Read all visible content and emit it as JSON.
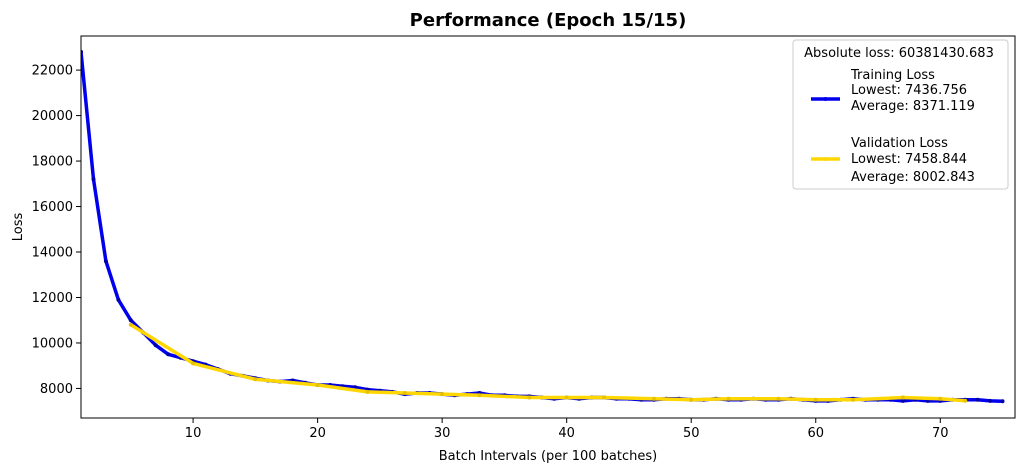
{
  "chart_data": {
    "type": "line",
    "title": "Performance (Epoch 15/15)",
    "xlabel": "Batch Intervals (per 100 batches)",
    "ylabel": "Loss",
    "xlim": [
      1,
      76
    ],
    "ylim": [
      6700,
      23500
    ],
    "xticks": [
      10,
      20,
      30,
      40,
      50,
      60,
      70
    ],
    "yticks": [
      8000,
      10000,
      12000,
      14000,
      16000,
      18000,
      20000,
      22000
    ],
    "grid": false,
    "legend_position": "top-right",
    "legend_title": "Absolute loss: 60381430.683",
    "series": [
      {
        "name": "Training Loss",
        "legend_lines": [
          "Training Loss",
          "Lowest: 7436.756",
          "Average: 8371.119"
        ],
        "color": "#0000ee",
        "x": [
          1,
          2,
          3,
          4,
          5,
          6,
          7,
          8,
          9,
          10,
          11,
          12,
          13,
          14,
          15,
          16,
          17,
          18,
          19,
          20,
          21,
          22,
          23,
          24,
          25,
          26,
          27,
          28,
          29,
          30,
          31,
          32,
          33,
          34,
          35,
          36,
          37,
          38,
          39,
          40,
          41,
          42,
          43,
          44,
          45,
          46,
          47,
          48,
          49,
          50,
          51,
          52,
          53,
          54,
          55,
          56,
          57,
          58,
          59,
          60,
          61,
          62,
          63,
          64,
          65,
          66,
          67,
          68,
          69,
          70,
          71,
          72,
          73,
          74,
          75
        ],
        "y": [
          22800,
          17200,
          13600,
          11900,
          11000,
          10450,
          9900,
          9500,
          9350,
          9200,
          9050,
          8850,
          8650,
          8550,
          8450,
          8350,
          8300,
          8350,
          8250,
          8150,
          8150,
          8100,
          8050,
          7950,
          7900,
          7850,
          7750,
          7800,
          7800,
          7750,
          7700,
          7750,
          7800,
          7700,
          7700,
          7650,
          7650,
          7600,
          7550,
          7600,
          7550,
          7600,
          7600,
          7550,
          7550,
          7500,
          7500,
          7550,
          7550,
          7500,
          7500,
          7550,
          7500,
          7500,
          7550,
          7500,
          7500,
          7550,
          7500,
          7450,
          7450,
          7500,
          7550,
          7500,
          7500,
          7500,
          7450,
          7500,
          7450,
          7450,
          7500,
          7500,
          7500,
          7450,
          7440
        ]
      },
      {
        "name": "Validation Loss",
        "legend_lines": [
          "Validation Loss",
          "Lowest: 7458.844",
          "Average: 8002.843"
        ],
        "color": "#ffd700",
        "x": [
          5,
          10,
          15,
          20,
          24,
          27,
          30,
          33,
          37,
          40,
          43,
          47,
          50,
          53,
          57,
          60,
          63,
          67,
          70,
          72
        ],
        "y": [
          10800,
          9100,
          8400,
          8150,
          7850,
          7800,
          7750,
          7700,
          7600,
          7600,
          7600,
          7550,
          7500,
          7550,
          7550,
          7500,
          7500,
          7600,
          7550,
          7460
        ]
      }
    ]
  }
}
